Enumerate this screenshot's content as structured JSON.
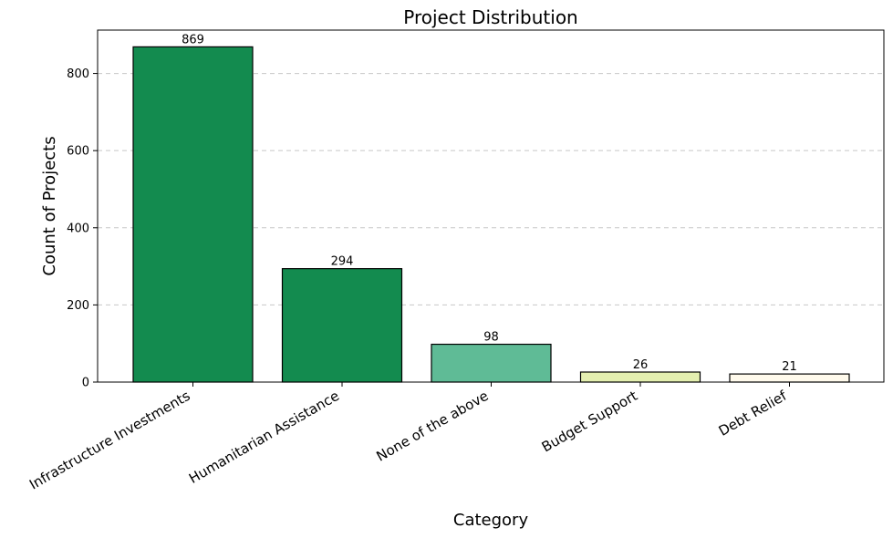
{
  "chart_data": {
    "type": "bar",
    "title": "Project Distribution",
    "xlabel": "Category",
    "ylabel": "Count of Projects",
    "categories": [
      "Infrastructure Investments",
      "Humanitarian Assistance",
      "None of the above",
      "Budget Support",
      "Debt Relief"
    ],
    "values": [
      869,
      294,
      98,
      26,
      21
    ],
    "value_labels": [
      "869",
      "294",
      "98",
      "26",
      "21"
    ],
    "colors": [
      "#138b4f",
      "#138b4f",
      "#5fbb96",
      "#e4efb0",
      "#fffaec"
    ],
    "ylim": [
      0,
      912.45
    ],
    "yticks": [
      0,
      200,
      400,
      600,
      800
    ],
    "ytick_labels": [
      "0",
      "200",
      "400",
      "600",
      "800"
    ],
    "grid": "y-dashed",
    "legend": "none"
  }
}
